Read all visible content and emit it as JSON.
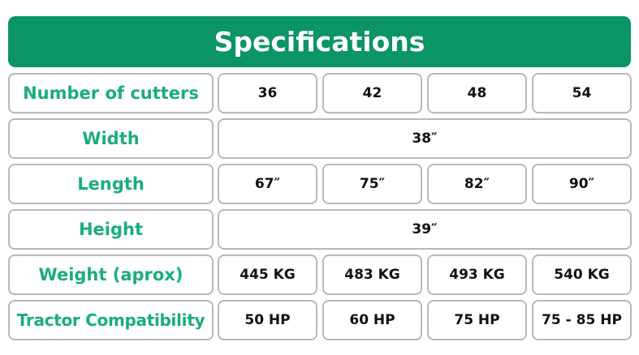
{
  "title": "Specifications",
  "rows": [
    {
      "label": "Number of cutters",
      "values": [
        "36",
        "42",
        "48",
        "54"
      ]
    },
    {
      "label": "Width",
      "values": [
        "38″"
      ]
    },
    {
      "label": "Length",
      "values": [
        "67″",
        "75″",
        "82″",
        "90″"
      ]
    },
    {
      "label": "Height",
      "values": [
        "39″"
      ]
    },
    {
      "label": "Weight (aprox)",
      "values": [
        "445 KG",
        "483 KG",
        "493 KG",
        "540 KG"
      ]
    },
    {
      "label": "Tractor Compatibility",
      "values": [
        "50 HP",
        "60 HP",
        "75 HP",
        "75 - 85 HP"
      ]
    }
  ],
  "colors": {
    "header_bg": "#0b9467",
    "label_text": "#1aae78",
    "border": "#b8b8b8"
  }
}
